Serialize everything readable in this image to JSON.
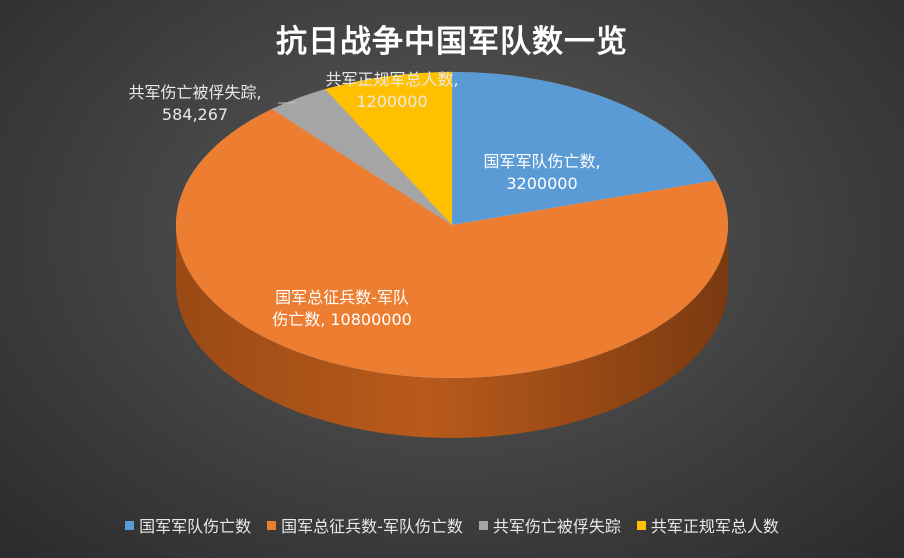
{
  "chart_data": {
    "type": "pie",
    "title": "抗日战争中国军队数一览",
    "categories": [
      "国军军队伤亡数",
      "国军总征兵数-军队伤亡数",
      "共军伤亡被俘失踪",
      "共军正规军总人数"
    ],
    "values": [
      3200000,
      10800000,
      584267,
      1200000
    ],
    "value_labels": [
      "3200000",
      "10800000",
      "584,267",
      "1200000"
    ],
    "colors": [
      "#5b9bd5",
      "#ed7d31",
      "#a5a5a5",
      "#ffc000"
    ],
    "legend_position": "bottom",
    "style": "3d"
  }
}
